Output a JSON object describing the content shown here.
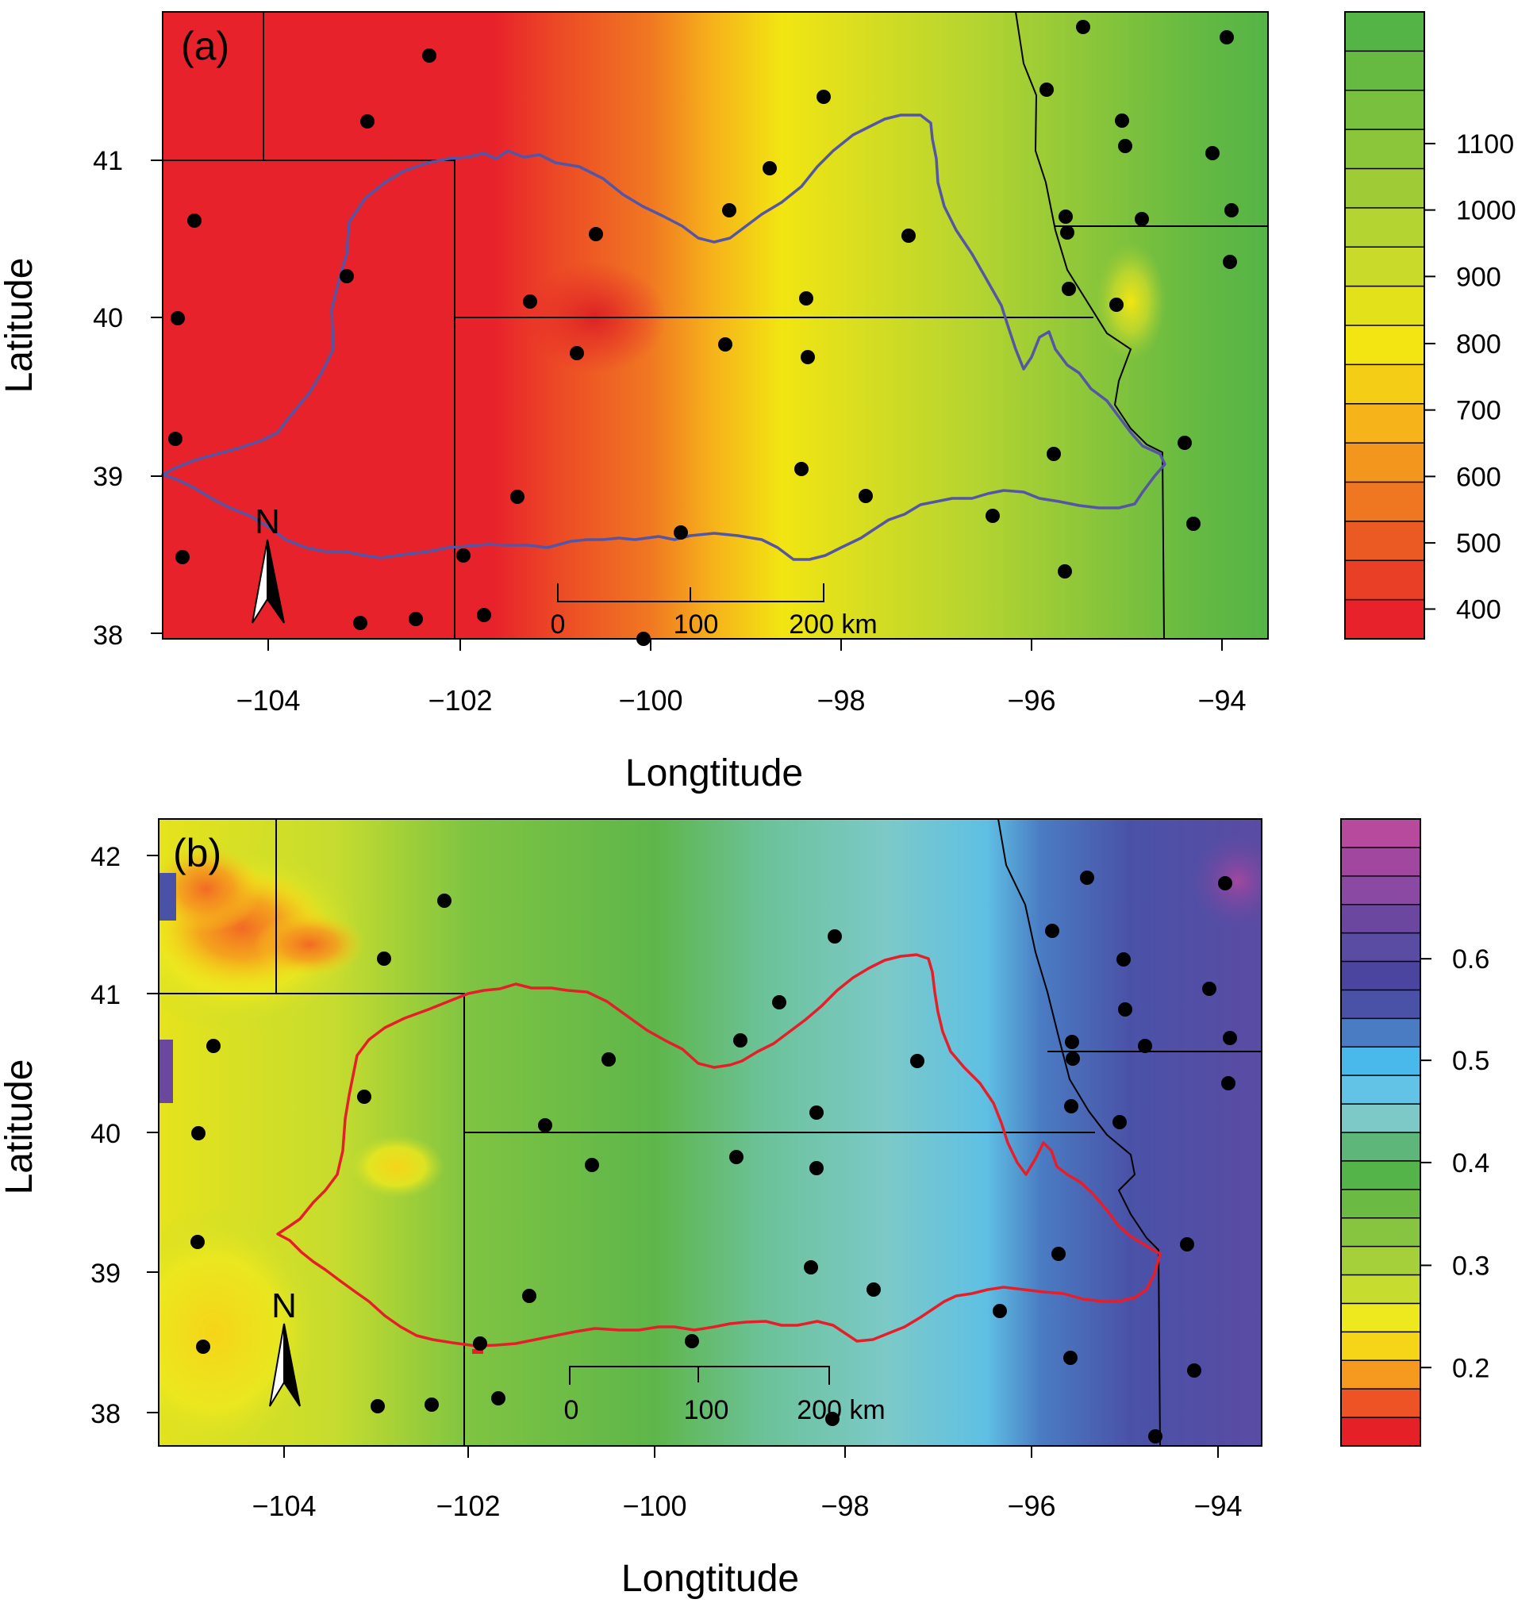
{
  "panels": [
    {
      "id": "a",
      "panel_label": "(a)",
      "xlabel": "Longtitude",
      "ylabel": "Latitude",
      "xticks": [
        "−104",
        "−102",
        "−100",
        "−98",
        "−96",
        "−94"
      ],
      "yticks": [
        "38",
        "39",
        "40",
        "41"
      ],
      "north_label": "N",
      "scale_labels": [
        "0",
        "100",
        "200 km"
      ],
      "colorbar": {
        "tick_labels": [
          "400",
          "500",
          "600",
          "700",
          "800",
          "900",
          "1000",
          "1100"
        ],
        "band_colors": [
          "#E8222B",
          "#EA3F27",
          "#EC5A24",
          "#F07722",
          "#F3961E",
          "#F6B41A",
          "#F4CE16",
          "#F2E512",
          "#E3E21A",
          "#C9DA2A",
          "#B3D431",
          "#9FCC36",
          "#8BC63A",
          "#78C03E",
          "#66BA42",
          "#55B446"
        ]
      }
    },
    {
      "id": "b",
      "panel_label": "(b)",
      "xlabel": "Longtitude",
      "ylabel": "Latitude",
      "xticks": [
        "−104",
        "−102",
        "−100",
        "−98",
        "−96",
        "−94"
      ],
      "yticks": [
        "38",
        "39",
        "40",
        "41",
        "42"
      ],
      "north_label": "N",
      "scale_labels": [
        "0",
        "100",
        "200 km"
      ],
      "colorbar": {
        "tick_labels": [
          "0.2",
          "0.3",
          "0.4",
          "0.5",
          "0.6"
        ],
        "band_colors": [
          "#E62027",
          "#EE5326",
          "#F59A1E",
          "#F6D418",
          "#EEE81E",
          "#C6DC2E",
          "#A6D03A",
          "#87C440",
          "#6ABA44",
          "#55B449",
          "#5EB67A",
          "#7CC9C8",
          "#63C3E6",
          "#49B9EC",
          "#4A7CC3",
          "#4A52A8",
          "#4C45A0",
          "#5A4BA3",
          "#6B47A0",
          "#8A4AA4",
          "#A247A0",
          "#B84A9E"
        ]
      }
    }
  ],
  "colors": {
    "watershed_a": "#5555A5",
    "watershed_b": "#E61E2A",
    "station": "#000000",
    "border": "#000000"
  }
}
